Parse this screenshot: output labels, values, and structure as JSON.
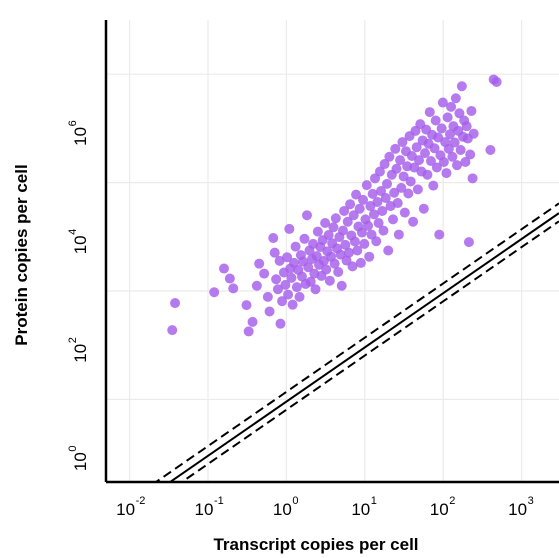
{
  "chart_data": {
    "type": "scatter",
    "title": "",
    "xlabel": "Transcript copies per cell",
    "ylabel": "Protein copies per cell",
    "x_scale": "log10",
    "y_scale": "log10",
    "xlim": [
      0.005,
      3000
    ],
    "ylim": [
      0.3,
      100000000
    ],
    "x_ticks": [
      {
        "base": "10",
        "exp": "-2",
        "value": 0.01
      },
      {
        "base": "10",
        "exp": "-1",
        "value": 0.1
      },
      {
        "base": "10",
        "exp": "0",
        "value": 1
      },
      {
        "base": "10",
        "exp": "1",
        "value": 10
      },
      {
        "base": "10",
        "exp": "2",
        "value": 100
      },
      {
        "base": "10",
        "exp": "3",
        "value": 1000
      }
    ],
    "y_ticks": [
      {
        "base": "10",
        "exp": "0",
        "value": 1
      },
      {
        "base": "10",
        "exp": "2",
        "value": 100
      },
      {
        "base": "10",
        "exp": "4",
        "value": 10000
      },
      {
        "base": "10",
        "exp": "6",
        "value": 1000000
      }
    ],
    "grid": true,
    "point_color": "#A55EEA",
    "reference_lines": [
      {
        "style": "solid",
        "slope": 1,
        "intercept_log10": 0.96
      },
      {
        "style": "dashed",
        "slope": 1,
        "intercept_log10": 0.81
      },
      {
        "style": "dashed",
        "slope": 1,
        "intercept_log10": 1.14
      }
    ],
    "points": [
      [
        0.038,
        600
      ],
      [
        0.035,
        190
      ],
      [
        0.12,
        950
      ],
      [
        0.21,
        1120
      ],
      [
        0.16,
        2600
      ],
      [
        0.19,
        1700
      ],
      [
        0.31,
        550
      ],
      [
        0.33,
        180
      ],
      [
        0.37,
        270
      ],
      [
        0.42,
        1250
      ],
      [
        0.45,
        3200
      ],
      [
        0.52,
        2100
      ],
      [
        0.58,
        780
      ],
      [
        0.61,
        420
      ],
      [
        0.68,
        9500
      ],
      [
        0.71,
        5100
      ],
      [
        0.74,
        1650
      ],
      [
        0.78,
        1080
      ],
      [
        0.82,
        3600
      ],
      [
        0.84,
        250
      ],
      [
        0.88,
        650
      ],
      [
        0.93,
        2200
      ],
      [
        0.97,
        1300
      ],
      [
        1.02,
        4200
      ],
      [
        1.05,
        860
      ],
      [
        1.09,
        14000
      ],
      [
        1.12,
        2600
      ],
      [
        1.16,
        1750
      ],
      [
        1.2,
        560
      ],
      [
        1.25,
        3300
      ],
      [
        1.31,
        6600
      ],
      [
        1.36,
        1180
      ],
      [
        1.42,
        2450
      ],
      [
        1.47,
        780
      ],
      [
        1.53,
        4600
      ],
      [
        1.58,
        1850
      ],
      [
        1.63,
        3500
      ],
      [
        1.7,
        9200
      ],
      [
        1.76,
        1350
      ],
      [
        1.83,
        25000
      ],
      [
        1.9,
        2750
      ],
      [
        1.97,
        5600
      ],
      [
        2.04,
        1480
      ],
      [
        2.12,
        3900
      ],
      [
        2.19,
        7400
      ],
      [
        2.27,
        2100
      ],
      [
        2.35,
        1080
      ],
      [
        2.44,
        4400
      ],
      [
        2.52,
        12500
      ],
      [
        2.61,
        3050
      ],
      [
        2.71,
        6500
      ],
      [
        2.8,
        1900
      ],
      [
        2.9,
        8700
      ],
      [
        3.01,
        3600
      ],
      [
        3.12,
        18000
      ],
      [
        3.22,
        2500
      ],
      [
        3.34,
        5400
      ],
      [
        3.46,
        10800
      ],
      [
        3.58,
        1550
      ],
      [
        3.71,
        4300
      ],
      [
        3.84,
        7600
      ],
      [
        3.98,
        15000
      ],
      [
        4.12,
        3200
      ],
      [
        4.27,
        22000
      ],
      [
        4.42,
        6100
      ],
      [
        4.58,
        2250
      ],
      [
        4.74,
        9900
      ],
      [
        4.91,
        4700
      ],
      [
        5.08,
        1250
      ],
      [
        5.27,
        13000
      ],
      [
        5.45,
        30000
      ],
      [
        5.65,
        7100
      ],
      [
        5.85,
        3650
      ],
      [
        6.06,
        19000
      ],
      [
        6.27,
        5100
      ],
      [
        6.5,
        40000
      ],
      [
        6.73,
        10600
      ],
      [
        6.97,
        2850
      ],
      [
        7.22,
        25000
      ],
      [
        7.48,
        8200
      ],
      [
        7.74,
        60000
      ],
      [
        8.02,
        5600
      ],
      [
        8.3,
        15500
      ],
      [
        8.6,
        33000
      ],
      [
        8.9,
        3300
      ],
      [
        9.2,
        12000
      ],
      [
        9.5,
        48000
      ],
      [
        9.85,
        7400
      ],
      [
        10.2,
        21000
      ],
      [
        10.6,
        90000
      ],
      [
        11,
        16000
      ],
      [
        11.4,
        4300
      ],
      [
        11.8,
        37000
      ],
      [
        12.2,
        11000
      ],
      [
        12.6,
        62000
      ],
      [
        13.1,
        26000
      ],
      [
        13.5,
        120000
      ],
      [
        14,
        8300
      ],
      [
        14.5,
        44000
      ],
      [
        15,
        18000
      ],
      [
        15.6,
        160000
      ],
      [
        16.1,
        70000
      ],
      [
        16.7,
        30000
      ],
      [
        17.3,
        13000
      ],
      [
        17.9,
        220000
      ],
      [
        18.5,
        52000
      ],
      [
        19.2,
        95000
      ],
      [
        19.9,
        5600
      ],
      [
        20.6,
        300000
      ],
      [
        21.3,
        37000
      ],
      [
        22.1,
        140000
      ],
      [
        22.9,
        21000
      ],
      [
        23.7,
        65000
      ],
      [
        24.5,
        420000
      ],
      [
        25.4,
        180000
      ],
      [
        26.3,
        42000
      ],
      [
        27.2,
        11000
      ],
      [
        28.2,
        260000
      ],
      [
        29.2,
        80000
      ],
      [
        30.2,
        560000
      ],
      [
        31.3,
        130000
      ],
      [
        32.4,
        28000
      ],
      [
        33.5,
        380000
      ],
      [
        34.7,
        200000
      ],
      [
        35.9,
        63000
      ],
      [
        37.2,
        720000
      ],
      [
        38.5,
        105000
      ],
      [
        39.9,
        310000
      ],
      [
        41.3,
        19000
      ],
      [
        42.8,
        190000
      ],
      [
        44.3,
        900000
      ],
      [
        45.9,
        450000
      ],
      [
        47.5,
        75000
      ],
      [
        49.2,
        260000
      ],
      [
        51,
        1200000
      ],
      [
        52.8,
        160000
      ],
      [
        54.7,
        600000
      ],
      [
        56.6,
        33000
      ],
      [
        58.6,
        350000
      ],
      [
        60.7,
        950000
      ],
      [
        62.9,
        140000
      ],
      [
        65.1,
        520000
      ],
      [
        67.4,
        2000000
      ],
      [
        69.8,
        250000
      ],
      [
        72.3,
        760000
      ],
      [
        74.8,
        88000
      ],
      [
        77.5,
        430000
      ],
      [
        80.3,
        1400000
      ],
      [
        83.1,
        190000
      ],
      [
        86.1,
        680000
      ],
      [
        89.1,
        11000
      ],
      [
        92.3,
        320000
      ],
      [
        95.6,
        1000000
      ],
      [
        99,
        3000000
      ],
      [
        102,
        240000
      ],
      [
        106,
        560000
      ],
      [
        110,
        150000
      ],
      [
        114,
        1600000
      ],
      [
        118,
        420000
      ],
      [
        122,
        780000
      ],
      [
        126,
        2500000
      ],
      [
        131,
        300000
      ],
      [
        135,
        1100000
      ],
      [
        140,
        550000
      ],
      [
        145,
        3600000
      ],
      [
        150,
        210000
      ],
      [
        156,
        900000
      ],
      [
        161,
        1900000
      ],
      [
        167,
        400000
      ],
      [
        173,
        6000000
      ],
      [
        179,
        700000
      ],
      [
        185,
        1400000
      ],
      [
        192,
        240000
      ],
      [
        199,
        1100000
      ],
      [
        206,
        650000
      ],
      [
        213,
        8000
      ],
      [
        221,
        330000
      ],
      [
        229,
        2100000
      ],
      [
        237,
        120000
      ],
      [
        245,
        800000
      ],
      [
        400,
        400000
      ],
      [
        440,
        8000000
      ],
      [
        480,
        7200000
      ]
    ]
  }
}
